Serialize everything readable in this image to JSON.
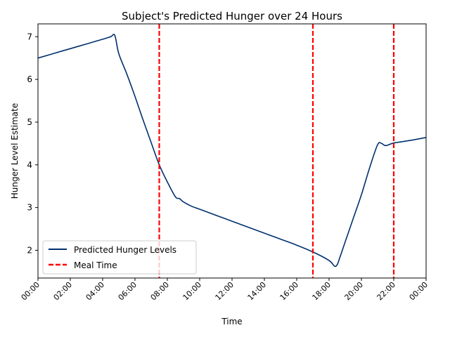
{
  "chart_data": {
    "type": "line",
    "title": "Subject's Predicted Hunger over 24 Hours",
    "xlabel": "Time",
    "ylabel": "Hunger Level Estimate",
    "x_ticks": [
      "00:00",
      "02:00",
      "04:00",
      "06:00",
      "08:00",
      "10:00",
      "12:00",
      "14:00",
      "16:00",
      "18:00",
      "20:00",
      "22:00",
      "00:00"
    ],
    "x_tick_hours": [
      0,
      2,
      4,
      6,
      8,
      10,
      12,
      14,
      16,
      18,
      20,
      22,
      24
    ],
    "y_ticks": [
      2,
      3,
      4,
      5,
      6,
      7
    ],
    "xlim_hours": [
      0,
      24
    ],
    "ylim": [
      1.35,
      7.3
    ],
    "grid": false,
    "legend_position": "lower-left",
    "series": [
      {
        "name": "Predicted Hunger Levels",
        "color": "#00306e",
        "x": [
          "00:00",
          "01:00",
          "02:00",
          "03:00",
          "04:00",
          "04:30",
          "04:45",
          "05:00",
          "05:30",
          "06:00",
          "06:30",
          "07:00",
          "07:30",
          "08:00",
          "08:30",
          "08:45",
          "09:00",
          "09:30",
          "10:00",
          "11:00",
          "12:00",
          "13:00",
          "14:00",
          "15:00",
          "16:00",
          "17:00",
          "18:00",
          "18:20",
          "18:30",
          "18:40",
          "19:00",
          "19:30",
          "20:00",
          "20:30",
          "21:00",
          "21:15",
          "21:30",
          "22:00",
          "23:00",
          "00:00"
        ],
        "y": [
          6.5,
          6.61,
          6.72,
          6.83,
          6.94,
          7.0,
          7.03,
          6.6,
          6.12,
          5.6,
          5.05,
          4.52,
          4.0,
          3.6,
          3.25,
          3.21,
          3.13,
          3.03,
          2.96,
          2.82,
          2.68,
          2.54,
          2.4,
          2.26,
          2.12,
          1.96,
          1.76,
          1.63,
          1.66,
          1.83,
          2.2,
          2.75,
          3.3,
          3.92,
          4.47,
          4.5,
          4.45,
          4.51,
          4.57,
          4.64
        ]
      }
    ],
    "vlines": {
      "name": "Meal Time",
      "color": "#ff0000",
      "style": "dashed",
      "x": [
        "07:30",
        "17:00",
        "22:00"
      ]
    }
  }
}
